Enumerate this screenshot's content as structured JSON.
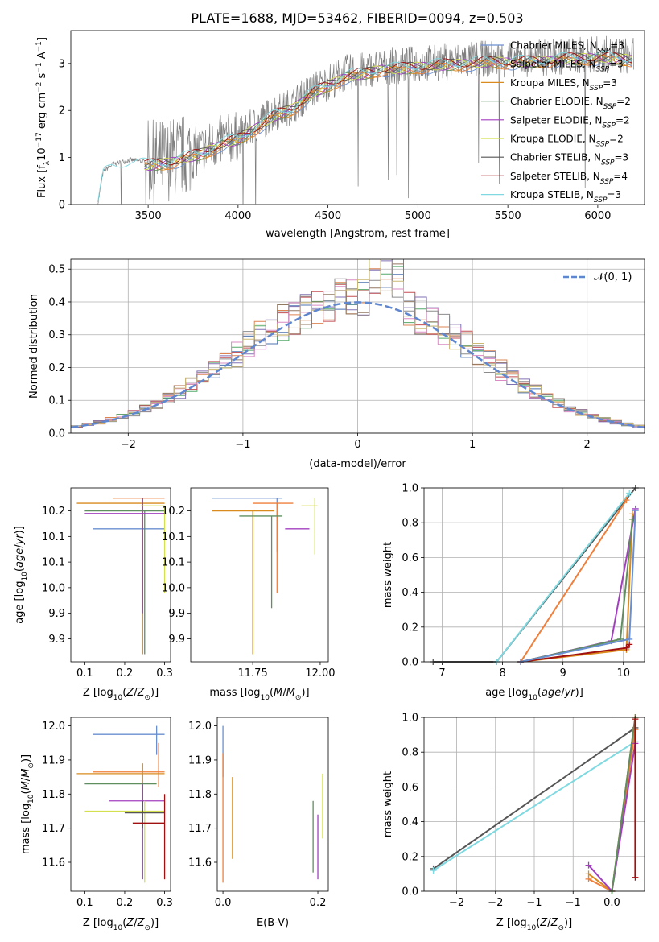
{
  "figure": {
    "title": "PLATE=1688, MJD=53462, FIBERID=0094, z=0.503"
  },
  "colors": {
    "series": [
      "#4c72b0",
      "#dd8452",
      "#55a868",
      "#c44e52",
      "#8172b3",
      "#937860",
      "#da8bc3",
      "#8c8c8c",
      "#ccb974",
      "#64b5cd"
    ],
    "legend_lines": [
      "#6a8fcf",
      "#ef7f3a",
      "#d98b1e",
      "#5f8f5f",
      "#a23fbf",
      "#d4e050",
      "#555555",
      "#a01010",
      "#80d8e0"
    ],
    "gaussian": "#5f87cf",
    "spectrum": "#7f7f7f"
  },
  "chart_data": [
    {
      "id": "spectrum",
      "type": "line",
      "title": "PLATE=1688, MJD=53462, FIBERID=0094, z=0.503",
      "xlabel": "wavelength [Angstrom, rest frame]",
      "ylabel": "Flux [f_λ 10^-17 erg cm^-2 s^-1 A^-1]",
      "xlim": [
        3070,
        6260
      ],
      "ylim": [
        0,
        3.7
      ],
      "xticks": [
        3500,
        4000,
        4500,
        5000,
        5500,
        6000
      ],
      "yticks": [
        0,
        1,
        2,
        3
      ],
      "grid": false,
      "legend": "top-right",
      "series": [
        {
          "name": "Chabrier MILES, N_SSP=3"
        },
        {
          "name": "Salpeter MILES, N_SSP=3"
        },
        {
          "name": "Kroupa MILES, N_SSP=3"
        },
        {
          "name": "Chabrier ELODIE, N_SSP=2"
        },
        {
          "name": "Salpeter ELODIE, N_SSP=2"
        },
        {
          "name": "Kroupa ELODIE, N_SSP=2"
        },
        {
          "name": "Chabrier STELIB, N_SSP=3"
        },
        {
          "name": "Salpeter STELIB, N_SSP=4"
        },
        {
          "name": "Kroupa STELIB, N_SSP=3"
        }
      ],
      "continuum": {
        "x": [
          3220,
          3250,
          3300,
          3400,
          3500,
          3600,
          3700,
          3800,
          3900,
          4000,
          4100,
          4200,
          4300,
          4400,
          4500,
          4600,
          4700,
          4800,
          4900,
          5000,
          5200,
          5400,
          5600,
          5800,
          6000,
          6200
        ],
        "y": [
          0.0,
          0.7,
          0.85,
          0.95,
          0.9,
          0.95,
          1.05,
          1.15,
          1.35,
          1.45,
          1.7,
          1.95,
          2.1,
          2.4,
          2.6,
          2.8,
          2.85,
          2.95,
          2.95,
          3.0,
          3.05,
          3.1,
          3.1,
          3.15,
          3.2,
          3.15
        ]
      }
    },
    {
      "id": "residuals",
      "type": "histogram",
      "xlabel": "(data-model)/error",
      "ylabel": "Normed distribution",
      "xlim": [
        -2.5,
        2.5
      ],
      "ylim": [
        0,
        0.53
      ],
      "xticks": [
        -2,
        -1,
        0,
        1,
        2
      ],
      "yticks": [
        0.0,
        0.1,
        0.2,
        0.3,
        0.4,
        0.5
      ],
      "grid": true,
      "legend": "top-right",
      "gaussian_label": "𝒩(0, 1)",
      "bin_width": 0.1
    },
    {
      "id": "age-vs-Z",
      "type": "errorbar",
      "xlabel": "Z [log10(Z/Z⊙)]",
      "ylabel": "age  [log10(age/yr)]",
      "xlim": [
        0.065,
        0.315
      ],
      "ylim": [
        9.855,
        10.195
      ],
      "xticks": [
        0.1,
        0.2,
        0.3
      ],
      "yticks": [
        9.9,
        9.95,
        10.0,
        10.05,
        10.1,
        10.15
      ],
      "grid": false,
      "points": [
        {
          "x": 0.245,
          "y": 10.115,
          "xlo": 0.12,
          "xhi": 0.3,
          "ylo": 10.115,
          "yhi": 10.115
        },
        {
          "x": 0.245,
          "y": 10.175,
          "xlo": 0.17,
          "xhi": 0.3,
          "ylo": 9.96,
          "yhi": 10.175
        },
        {
          "x": 0.245,
          "y": 10.165,
          "xlo": 0.08,
          "xhi": 0.3,
          "ylo": 9.87,
          "yhi": 10.165
        },
        {
          "x": 0.25,
          "y": 10.15,
          "xlo": 0.1,
          "xhi": 0.3,
          "ylo": 9.87,
          "yhi": 10.15
        },
        {
          "x": 0.245,
          "y": 10.145,
          "xlo": 0.1,
          "xhi": 0.3,
          "ylo": 9.95,
          "yhi": 10.175
        },
        {
          "x": 0.3,
          "y": 10.16,
          "xlo": 0.24,
          "xhi": 0.3,
          "ylo": 9.99,
          "yhi": 10.16
        }
      ]
    },
    {
      "id": "age-vs-mass",
      "type": "errorbar",
      "xlabel": "mass [log10(M/M⊙)]",
      "ylabel": "",
      "xlim": [
        11.52,
        12.03
      ],
      "ylim": [
        9.855,
        10.195
      ],
      "xticks": [
        11.75,
        12.0
      ],
      "xticklabels": [
        "11.75",
        "12.00"
      ],
      "yticks": [
        9.9,
        9.95,
        10.0,
        10.05,
        10.1,
        10.15
      ],
      "grid": false,
      "points": [
        {
          "x": 11.84,
          "y": 10.175,
          "xlo": 11.6,
          "xhi": 11.86,
          "ylo": 10.07,
          "yhi": 10.175
        },
        {
          "x": 11.84,
          "y": 10.165,
          "xlo": 11.75,
          "xhi": 11.9,
          "ylo": 9.99,
          "yhi": 10.165
        },
        {
          "x": 11.75,
          "y": 10.15,
          "xlo": 11.6,
          "xhi": 11.83,
          "ylo": 9.87,
          "yhi": 10.15
        },
        {
          "x": 11.82,
          "y": 10.14,
          "xlo": 11.7,
          "xhi": 11.86,
          "ylo": 9.96,
          "yhi": 10.14
        },
        {
          "x": 11.94,
          "y": 10.115,
          "xlo": 11.87,
          "xhi": 11.96,
          "ylo": 10.115,
          "yhi": 10.115
        },
        {
          "x": 11.98,
          "y": 10.16,
          "xlo": 11.93,
          "xhi": 11.99,
          "ylo": 10.065,
          "yhi": 10.175
        }
      ]
    },
    {
      "id": "weight-vs-age",
      "type": "line",
      "xlabel": "age  [log10(age/yr)]",
      "ylabel": "mass weight",
      "xlim": [
        6.7,
        10.35
      ],
      "ylim": [
        0,
        1
      ],
      "xticks": [
        7,
        8,
        9,
        10
      ],
      "yticks": [
        0.0,
        0.2,
        0.4,
        0.6,
        0.8,
        1.0
      ],
      "grid": true,
      "series": [
        {
          "x": [
            6.85,
            7.9,
            10.2
          ],
          "y": [
            0.0,
            0.0,
            1.0
          ]
        },
        {
          "x": [
            7.9,
            10.1
          ],
          "y": [
            0.0,
            0.97
          ]
        },
        {
          "x": [
            8.3,
            10.05
          ],
          "y": [
            0.0,
            0.93
          ]
        },
        {
          "x": [
            8.3,
            10.05,
            10.15
          ],
          "y": [
            0.0,
            0.07,
            0.85
          ]
        },
        {
          "x": [
            8.3,
            9.8,
            10.2
          ],
          "y": [
            0.0,
            0.12,
            0.88
          ]
        },
        {
          "x": [
            8.3,
            9.95,
            10.15
          ],
          "y": [
            0.0,
            0.13,
            0.82
          ]
        },
        {
          "x": [
            8.3,
            10.05,
            10.1
          ],
          "y": [
            0.0,
            0.08,
            0.1
          ]
        },
        {
          "x": [
            8.3,
            10.1,
            10.2
          ],
          "y": [
            0.0,
            0.13,
            0.87
          ]
        }
      ]
    },
    {
      "id": "mass-vs-Z",
      "type": "errorbar",
      "xlabel": "Z [log10(Z/Z⊙)]",
      "ylabel": "mass [log10(M/M⊙)]",
      "xlim": [
        0.065,
        0.315
      ],
      "ylim": [
        11.515,
        12.025
      ],
      "xticks": [
        0.1,
        0.2,
        0.3
      ],
      "yticks": [
        11.6,
        11.7,
        11.8,
        11.9,
        12.0
      ],
      "grid": false,
      "points": [
        {
          "x": 0.28,
          "y": 11.975,
          "xlo": 0.12,
          "xhi": 0.3,
          "ylo": 11.915,
          "yhi": 12.0
        },
        {
          "x": 0.285,
          "y": 11.865,
          "xlo": 0.12,
          "xhi": 0.3,
          "ylo": 11.82,
          "yhi": 11.95
        },
        {
          "x": 0.245,
          "y": 11.86,
          "xlo": 0.08,
          "xhi": 0.3,
          "ylo": 11.7,
          "yhi": 11.89
        },
        {
          "x": 0.245,
          "y": 11.83,
          "xlo": 0.1,
          "xhi": 0.28,
          "ylo": 11.72,
          "yhi": 11.83
        },
        {
          "x": 0.245,
          "y": 11.78,
          "xlo": 0.16,
          "xhi": 0.3,
          "ylo": 11.55,
          "yhi": 11.83
        },
        {
          "x": 0.25,
          "y": 11.75,
          "xlo": 0.1,
          "xhi": 0.3,
          "ylo": 11.54,
          "yhi": 11.78
        },
        {
          "x": 0.245,
          "y": 11.745,
          "xlo": 0.2,
          "xhi": 0.3,
          "ylo": 11.7,
          "yhi": 11.78
        },
        {
          "x": 0.3,
          "y": 11.715,
          "xlo": 0.22,
          "xhi": 0.3,
          "ylo": 11.55,
          "yhi": 11.8
        }
      ]
    },
    {
      "id": "mass-vs-ebv",
      "type": "errorbar",
      "xlabel": "E(B-V)",
      "ylabel": "",
      "xlim": [
        -0.012,
        0.222
      ],
      "ylim": [
        11.515,
        12.025
      ],
      "xticks": [
        0.0,
        0.2
      ],
      "yticks": [
        11.6,
        11.7,
        11.8,
        11.9,
        12.0
      ],
      "grid": false,
      "points": [
        {
          "x": 0.0,
          "y": 11.93,
          "ylo": 11.85,
          "yhi": 12.0
        },
        {
          "x": 0.0,
          "y": 11.8,
          "ylo": 11.54,
          "yhi": 11.92
        },
        {
          "x": 0.02,
          "y": 11.75,
          "ylo": 11.61,
          "yhi": 11.85
        },
        {
          "x": 0.19,
          "y": 11.65,
          "ylo": 11.57,
          "yhi": 11.78
        },
        {
          "x": 0.2,
          "y": 11.65,
          "ylo": 11.55,
          "yhi": 11.74
        },
        {
          "x": 0.21,
          "y": 11.75,
          "ylo": 11.67,
          "yhi": 11.86
        }
      ]
    },
    {
      "id": "weight-vs-Z",
      "type": "line",
      "xlabel": "Z [log10(Z/Z⊙)]",
      "ylabel": "mass weight",
      "xlim": [
        -2.42,
        0.42
      ],
      "ylim": [
        0,
        1
      ],
      "xticks": [
        -2.0,
        -1.5,
        -1.0,
        -0.5,
        0.0
      ],
      "yticks": [
        0.0,
        0.2,
        0.4,
        0.6,
        0.8,
        1.0
      ],
      "grid": true,
      "series": [
        {
          "x": [
            -2.3,
            0.3
          ],
          "y": [
            0.13,
            0.94
          ]
        },
        {
          "x": [
            -2.3,
            0.3
          ],
          "y": [
            0.12,
            0.86
          ]
        },
        {
          "x": [
            -0.3,
            0.0,
            0.3
          ],
          "y": [
            0.07,
            0.0,
            0.93
          ]
        },
        {
          "x": [
            -0.3,
            0.0,
            0.3
          ],
          "y": [
            0.1,
            0.0,
            1.0
          ]
        },
        {
          "x": [
            -0.3,
            0.0,
            0.3
          ],
          "y": [
            0.15,
            0.0,
            0.85
          ]
        },
        {
          "x": [
            0.0,
            0.3
          ],
          "y": [
            0.0,
            1.0
          ]
        },
        {
          "x": [
            0.3,
            0.3
          ],
          "y": [
            0.08,
            0.99
          ]
        }
      ]
    }
  ]
}
